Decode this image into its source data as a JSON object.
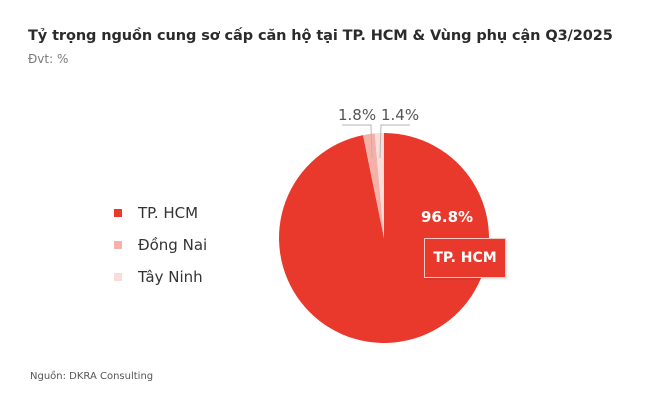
{
  "header": {
    "title": "Tỷ trọng nguồn cung sơ cấp căn hộ tại TP. HCM & Vùng phụ cận Q3/2025",
    "unit": "Đvt: %"
  },
  "legend": {
    "items": [
      {
        "label": "TP. HCM",
        "color": "#e8392c"
      },
      {
        "label": "Đồng Nai",
        "color": "#f4b1a8"
      },
      {
        "label": "Tây Ninh",
        "color": "#fbdcd8"
      }
    ]
  },
  "labels": {
    "hcm_value": "96.8%",
    "hcm_callout": "TP. HCM",
    "dongnai_value": "1.8%",
    "tayninh_value": "1.4%"
  },
  "footer": {
    "source": "Nguồn: DKRA Consulting"
  },
  "chart_data": {
    "type": "pie",
    "title": "Tỷ trọng nguồn cung sơ cấp căn hộ tại TP. HCM & Vùng phụ cận Q3/2025",
    "subtitle": "Đvt: %",
    "categories": [
      "TP. HCM",
      "Đồng Nai",
      "Tây Ninh"
    ],
    "values": [
      96.8,
      1.8,
      1.4
    ],
    "colors": [
      "#e8392c",
      "#f4b1a8",
      "#fbdcd8"
    ],
    "legend_position": "left",
    "annotations": [
      "96.8%",
      "TP. HCM",
      "1.8%",
      "1.4%"
    ],
    "source": "Nguồn: DKRA Consulting"
  }
}
